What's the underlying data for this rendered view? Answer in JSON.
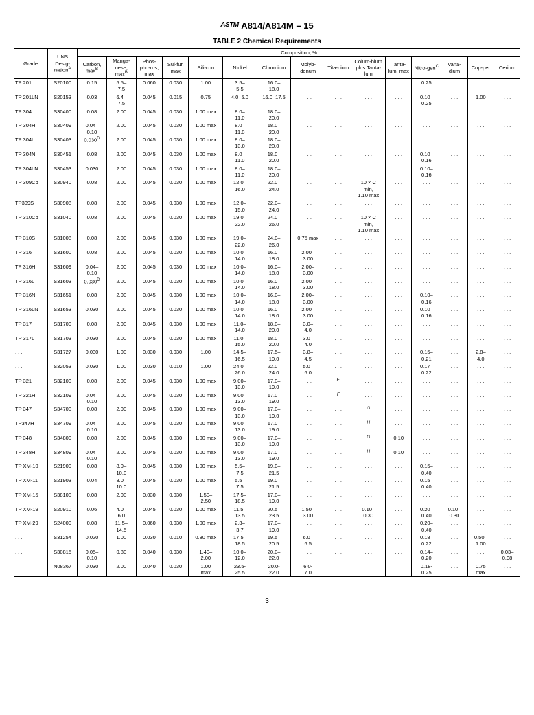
{
  "doc": {
    "logo": "ASTM",
    "standard": "A814/A814M – 15",
    "table_title": "TABLE 2 Chemical Requirements",
    "comp_header": "Composition, %",
    "page": "3"
  },
  "cols": [
    "Grade",
    "UNS Desig-nation",
    "Carbon, max",
    "Manga-nese, max",
    "Phos-pho-rus, max",
    "Sul-fur, max",
    "Sili-con",
    "Nickel",
    "Chromium",
    "Molyb-denum",
    "Tita-nium",
    "Colum-bium plus Tanta-lum",
    "Tanta-lum, max",
    "Nitro-gen",
    "Vana-dium",
    "Cop-per",
    "Cerium"
  ],
  "sup": {
    "A": "A",
    "B": "B",
    "C": "C",
    "D": "D",
    "E": "E",
    "F": "F",
    "G": "G",
    "H": "H"
  },
  "rows": [
    [
      "TP 201",
      "S20100",
      "0.15",
      "5.5–\n7.5",
      "0.060",
      "0.030",
      "1.00",
      "3.5–\n5.5",
      "16.0–\n18.0",
      ". . .",
      ". . .",
      ". . .",
      ". . .",
      "0.25",
      ". . .",
      ". . .",
      ". . ."
    ],
    [
      "TP 201LN",
      "S20153",
      "0.03",
      "6.4–\n7.5",
      "0.045",
      "0.015",
      "0.75",
      "4.0–5.0",
      "16.0–17.5",
      ". . .",
      ". . .",
      ". . .",
      ". . .",
      "0.10–\n0.25",
      ". . .",
      "1.00",
      ". . ."
    ],
    [
      "TP 304",
      "S30400",
      "0.08",
      "2.00",
      "0.045",
      "0.030",
      "1.00 max",
      "8.0–\n11.0",
      "18.0–\n20.0",
      ". . .",
      ". . .",
      ". . .",
      ". . .",
      ". . .",
      ". . .",
      ". . .",
      ". . ."
    ],
    [
      "TP 304H",
      "S30409",
      "0.04–\n0.10",
      "2.00",
      "0.045",
      "0.030",
      "1.00 max",
      "8.0–\n11.0",
      "18.0–\n20.0",
      ". . .",
      ". . .",
      ". . .",
      ". . .",
      ". . .",
      ". . .",
      ". . .",
      ". . ."
    ],
    [
      "TP 304L",
      "S30403",
      "0.030",
      "2.00",
      "0.045",
      "0.030",
      "1.00 max",
      "8.0–\n13.0",
      "18.0–\n20.0",
      ". . .",
      ". . .",
      ". . .",
      ". . .",
      ". . .",
      ". . .",
      ". . .",
      ". . ."
    ],
    [
      "TP 304N",
      "S30451",
      "0.08",
      "2.00",
      "0.045",
      "0.030",
      "1.00 max",
      "8.0–\n11.0",
      "18.0–\n20.0",
      ". . .",
      ". . .",
      ". . .",
      ". . .",
      "0.10–\n0.16",
      ". . .",
      ". . .",
      ". . ."
    ],
    [
      "TP 304LN",
      "S30453",
      "0.030",
      "2.00",
      "0.045",
      "0.030",
      "1.00 max",
      "8.0–\n11.0",
      "18.0–\n20.0",
      ". . .",
      ". . .",
      ". . .",
      ". . .",
      "0.10–\n0.16",
      ". . .",
      ". . .",
      ". . ."
    ],
    [
      "TP 309Cb",
      "S30940",
      "0.08",
      "2.00",
      "0.045",
      "0.030",
      "1.00 max",
      "12.0–\n16.0",
      "22.0–\n24.0",
      ". . .",
      ". . .",
      "10 × C\nmin,\n1.10 max",
      ". . .",
      ". . .",
      ". . .",
      ". . .",
      ". . ."
    ],
    [
      "TP309S",
      "S30908",
      "0.08",
      "2.00",
      "0.045",
      "0.030",
      "1.00 max",
      "12.0–\n15.0",
      "22.0–\n24.0",
      ". . .",
      ". . .",
      ". . .",
      ". . .",
      ". . .",
      ". . .",
      ". . .",
      ". . ."
    ],
    [
      "TP 310Cb",
      "S31040",
      "0.08",
      "2.00",
      "0.045",
      "0.030",
      "1.00 max",
      "19.0–\n22.0",
      "24.0–\n26.0",
      ". . .",
      ". . .",
      "10 × C\nmin,\n1.10 max",
      ". . .",
      ". . .",
      ". . .",
      ". . .",
      ". . ."
    ],
    [
      "TP 310S",
      "S31008",
      "0.08",
      "2.00",
      "0.045",
      "0.030",
      "1.00 max",
      "19.0–\n22.0",
      "24.0–\n26.0",
      "0.75 max",
      ". . .",
      ". . .",
      ". . .",
      ". . .",
      ". . .",
      ". . .",
      ". . ."
    ],
    [
      "TP 316",
      "S31600",
      "0.08",
      "2.00",
      "0.045",
      "0.030",
      "1.00 max",
      "10.0–\n14.0",
      "16.0–\n18.0",
      "2.00–\n3.00",
      ". . .",
      ". . .",
      ". . .",
      ". . .",
      ". . .",
      ". . .",
      ". . ."
    ],
    [
      "TP 316H",
      "S31609",
      "0.04–\n0.10",
      "2.00",
      "0.045",
      "0.030",
      "1.00 max",
      "10.0–\n14.0",
      "16.0–\n18.0",
      "2.00–\n3.00",
      ". . .",
      ". . .",
      ". . .",
      ". . .",
      ". . .",
      ". . .",
      ". . ."
    ],
    [
      "TP 316L",
      "S31603",
      "0.030",
      "2.00",
      "0.045",
      "0.030",
      "1.00 max",
      "10.0–\n14.0",
      "16.0–\n18.0",
      "2.00–\n3.00",
      ". . .",
      ". . .",
      ". . .",
      ". . .",
      ". . .",
      ". . .",
      ". . ."
    ],
    [
      "TP 316N",
      "S31651",
      "0.08",
      "2.00",
      "0.045",
      "0.030",
      "1.00 max",
      "10.0–\n14.0",
      "16.0–\n18.0",
      "2.00–\n3.00",
      ". . .",
      ". . .",
      ". . .",
      "0.10–\n0.16",
      ". . .",
      ". . .",
      ". . ."
    ],
    [
      "TP 316LN",
      "S31653",
      "0.030",
      "2.00",
      "0.045",
      "0.030",
      "1.00 max",
      "10.0–\n14.0",
      "16.0–\n18.0",
      "2.00–\n3.00",
      ". . .",
      ". . .",
      ". . .",
      "0.10–\n0.16",
      ". . .",
      ". . .",
      ". . ."
    ],
    [
      "TP 317",
      "S31700",
      "0.08",
      "2.00",
      "0.045",
      "0.030",
      "1.00 max",
      "11.0–\n14.0",
      "18.0–\n20.0",
      "3.0–\n4.0",
      ". . .",
      ". . .",
      ". . .",
      ". . .",
      ". . .",
      ". . .",
      ". . ."
    ],
    [
      "TP 317L",
      "S31703",
      "0.030",
      "2.00",
      "0.045",
      "0.030",
      "1.00 max",
      "11.0–\n15.0",
      "18.0–\n20.0",
      "3.0–\n4.0",
      ". . .",
      ". . .",
      ". . .",
      ". . .",
      ". . .",
      ". . .",
      ". . ."
    ],
    [
      ". . .",
      "S31727",
      "0.030",
      "1.00",
      "0.030",
      "0.030",
      "1.00",
      "14.5–\n16.5",
      "17.5–\n19.0",
      "3.8–\n4.5",
      ". . .",
      ". . .",
      ". . .",
      "0.15–\n0.21",
      ". . .",
      "2.8–\n4.0",
      ". . ."
    ],
    [
      ". . .",
      "S32053",
      "0.030",
      "1.00",
      "0.030",
      "0.010",
      "1.00",
      "24.0–\n26.0",
      "22.0–\n24.0",
      "5.0–\n6.0",
      ". . .",
      ". . .",
      ". . .",
      "0.17–\n0.22",
      ". . .",
      ". . .",
      ". . ."
    ],
    [
      "TP 321",
      "S32100",
      "0.08",
      "2.00",
      "0.045",
      "0.030",
      "1.00 max",
      "9.00–\n13.0",
      "17.0–\n19.0",
      ". . .",
      "E",
      ". . .",
      ". . .",
      ". . .",
      ". . .",
      ". . .",
      ". . ."
    ],
    [
      "TP 321H",
      "S32109",
      "0.04–\n0.10",
      "2.00",
      "0.045",
      "0.030",
      "1.00 max",
      "9.00–\n13.0",
      "17.0–\n19.0",
      ". . .",
      "F",
      ". . .",
      ". . .",
      ". . .",
      ". . .",
      ". . .",
      ". . ."
    ],
    [
      "TP 347",
      "S34700",
      "0.08",
      "2.00",
      "0.045",
      "0.030",
      "1.00 max",
      "9.00–\n13.0",
      "17.0–\n19.0",
      ". . .",
      ". . .",
      "G",
      ". . .",
      ". . .",
      ". . .",
      ". . .",
      ". . ."
    ],
    [
      "TP347H",
      "S34709",
      "0.04–\n0.10",
      "2.00",
      "0.045",
      "0.030",
      "1.00 max",
      "9.00–\n13.0",
      "17.0–\n19.0",
      ". . .",
      ". . .",
      "H",
      ". . .",
      ". . .",
      ". . .",
      ". . .",
      ". . ."
    ],
    [
      "TP 348",
      "S34800",
      "0.08",
      "2.00",
      "0.045",
      "0.030",
      "1.00 max",
      "9.00–\n13.0",
      "17.0–\n19.0",
      ". . .",
      ". . .",
      "G",
      "0.10",
      ". . .",
      ". . .",
      ". . .",
      ". . ."
    ],
    [
      "TP 348H",
      "S34809",
      "0.04–\n0.10",
      "2.00",
      "0.045",
      "0.030",
      "1.00 max",
      "9.00–\n13.0",
      "17.0–\n19.0",
      ". . .",
      ". . .",
      "H",
      "0.10",
      ". . .",
      ". . .",
      ". . .",
      ". . ."
    ],
    [
      "TP XM-10",
      "S21900",
      "0.08",
      "8.0–\n10.0",
      "0.045",
      "0.030",
      "1.00 max",
      "5.5–\n7.5",
      "19.0–\n21.5",
      ". . .",
      ". . .",
      ". . .",
      ". . .",
      "0.15–\n0.40",
      ". . .",
      ". . .",
      ". . ."
    ],
    [
      "TP XM-11",
      "S21903",
      "0.04",
      "8.0–\n10.0",
      "0.045",
      "0.030",
      "1.00 max",
      "5.5–\n7.5",
      "19.0–\n21.5",
      ". . .",
      ". . .",
      ". . .",
      ". . .",
      "0.15–\n0.40",
      ". . .",
      ". . .",
      ". . ."
    ],
    [
      "TP XM-15",
      "S38100",
      "0.08",
      "2.00",
      "0.030",
      "0.030",
      "1.50–\n2.50",
      "17.5–\n18.5",
      "17.0–\n19.0",
      ". . .",
      ". . .",
      ". . .",
      ". . .",
      ". . .",
      ". . .",
      ". . .",
      ". . ."
    ],
    [
      "TP XM-19",
      "S20910",
      "0.06",
      "4.0–\n6.0",
      "0.045",
      "0.030",
      "1.00 max",
      "11.5–\n13.5",
      "20.5–\n23.5",
      "1.50–\n3.00",
      ". . .",
      "0.10–\n0.30",
      ". . .",
      "0.20–\n0.40",
      "0.10–\n0.30",
      ". . .",
      ". . ."
    ],
    [
      "TP XM-29",
      "S24000",
      "0.08",
      "11.5–\n14.5",
      "0.060",
      "0.030",
      "1.00 max",
      "2.3–\n3.7",
      "17.0–\n19.0",
      ". . .",
      ". . .",
      ". . .",
      ". . .",
      "0.20–\n0.40",
      ". . .",
      ". . .",
      ". . ."
    ],
    [
      ". . .",
      "S31254",
      "0.020",
      "1.00",
      "0.030",
      "0.010",
      "0.80 max",
      "17.5–\n18.5",
      "19.5–\n20.5",
      "6.0–\n6.5",
      ". . .",
      ". . .",
      ". . .",
      "0.18–\n0.22",
      ". . .",
      "0.50–\n1.00",
      ". . ."
    ],
    [
      ". . .",
      "S30815",
      "0.05–\n0.10",
      "0.80",
      "0.040",
      "0.030",
      "1.40–\n2.00",
      "10.0–\n12.0",
      "20.0–\n22.0",
      ". . .",
      ". . .",
      ". . .",
      ". . .",
      "0.14–\n0.20",
      ". . .",
      ". . .",
      "0.03–\n0.08"
    ],
    [
      "",
      "N08367",
      "0.030",
      "2.00",
      "0.040",
      "0.030",
      "1.00\nmax",
      "23.5-\n25.5",
      "20.0-\n22.0",
      "6.0-\n7.0",
      "",
      "",
      "",
      "0.18-\n0.25",
      ". . .",
      "0.75\nmax",
      ". . ."
    ]
  ],
  "carbon_sup_D_rows": [
    4,
    13
  ],
  "footnote_letter_cols": {
    "20": {
      "10": "E"
    },
    "21": {
      "10": "F"
    },
    "22": {
      "11": "G"
    },
    "23": {
      "11": "H"
    },
    "24": {
      "11": "G"
    },
    "25": {
      "11": "H"
    }
  }
}
